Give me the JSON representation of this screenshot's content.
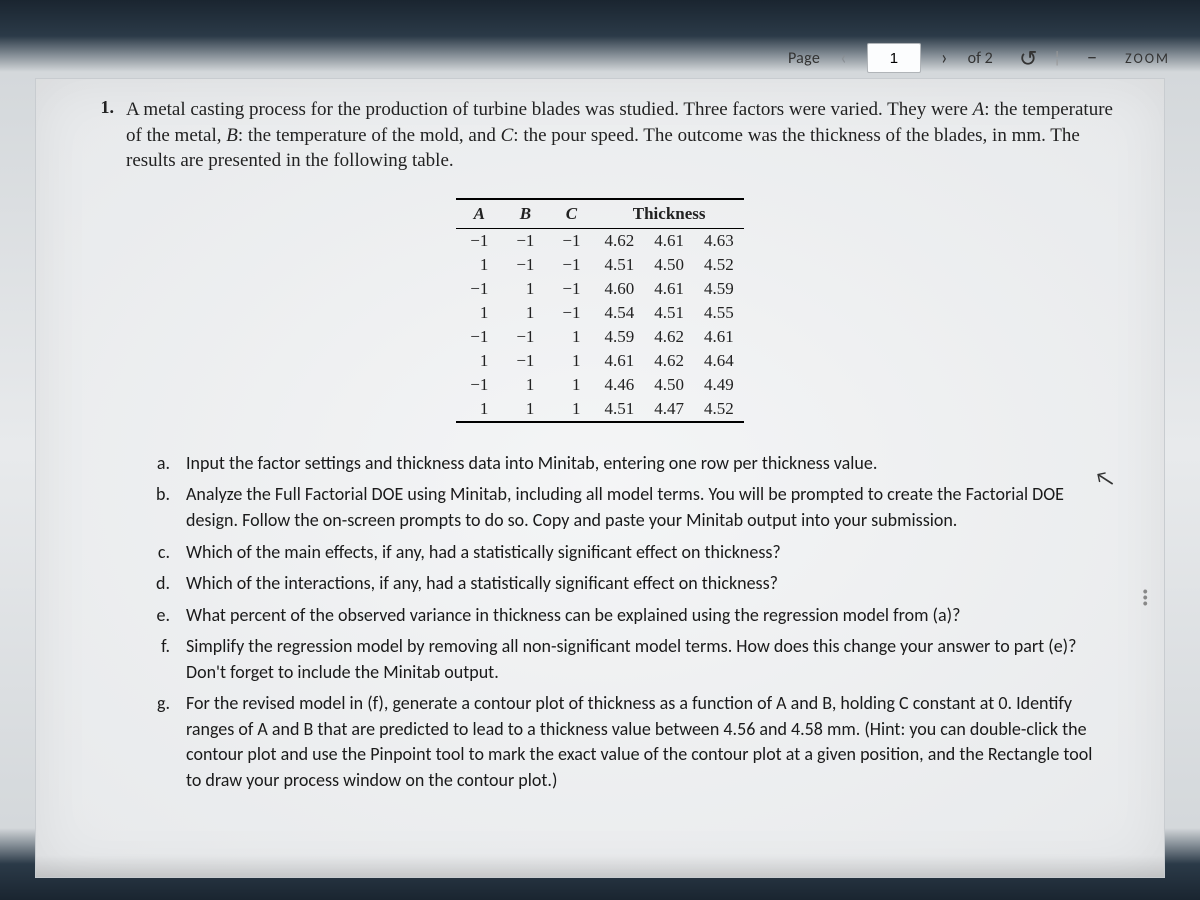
{
  "toolbar": {
    "page_label": "Page",
    "current_page": "1",
    "total_pages": "2",
    "of_label": "of",
    "zoom_label": "ZOOM"
  },
  "problem": {
    "number": "1.",
    "text_parts": [
      "A metal casting process for the production of turbine blades was studied. Three factors were varied. They were ",
      "A",
      ": the temperature of the metal, ",
      "B",
      ": the temperature of the mold, and ",
      "C",
      ": the pour speed. The outcome was the thickness of the blades, in mm. The results are presented in the following table."
    ]
  },
  "table": {
    "columns_abc": [
      "A",
      "B",
      "C"
    ],
    "thickness_header": "Thickness",
    "rows": [
      {
        "abc": [
          "−1",
          "−1",
          "−1"
        ],
        "thick": [
          "4.62",
          "4.61",
          "4.63"
        ]
      },
      {
        "abc": [
          "1",
          "−1",
          "−1"
        ],
        "thick": [
          "4.51",
          "4.50",
          "4.52"
        ]
      },
      {
        "abc": [
          "−1",
          "1",
          "−1"
        ],
        "thick": [
          "4.60",
          "4.61",
          "4.59"
        ]
      },
      {
        "abc": [
          "1",
          "1",
          "−1"
        ],
        "thick": [
          "4.54",
          "4.51",
          "4.55"
        ]
      },
      {
        "abc": [
          "−1",
          "−1",
          "1"
        ],
        "thick": [
          "4.59",
          "4.62",
          "4.61"
        ]
      },
      {
        "abc": [
          "1",
          "−1",
          "1"
        ],
        "thick": [
          "4.61",
          "4.62",
          "4.64"
        ]
      },
      {
        "abc": [
          "−1",
          "1",
          "1"
        ],
        "thick": [
          "4.46",
          "4.50",
          "4.49"
        ]
      },
      {
        "abc": [
          "1",
          "1",
          "1"
        ],
        "thick": [
          "4.51",
          "4.47",
          "4.52"
        ]
      }
    ],
    "border_color": "#000000",
    "font_family": "Times New Roman",
    "font_size_pt": 12
  },
  "subs": [
    {
      "label": "a.",
      "text": "Input the factor settings and thickness data into Minitab, entering one row per thickness value."
    },
    {
      "label": "b.",
      "text": "Analyze the Full Factorial DOE using Minitab, including all model terms.  You will be prompted to create the Factorial DOE design.  Follow the on-screen prompts to do so.  Copy and paste your Minitab output into your submission."
    },
    {
      "label": "c.",
      "text": "Which of the main effects, if any, had a statistically significant effect on thickness?"
    },
    {
      "label": "d.",
      "text": "Which of the interactions, if any, had a statistically significant effect on thickness?"
    },
    {
      "label": "e.",
      "text": "What percent of the observed variance in thickness can be explained using the regression model from (a)?"
    },
    {
      "label": "f.",
      "text": "Simplify the regression model by removing all non-significant model terms.  How does this change your answer to part (e)?  Don't forget to include the Minitab output."
    },
    {
      "label": "g.",
      "text": "For the revised model in (f), generate a contour plot of thickness as a function of A and B, holding C constant at 0.  Identify ranges of A and B that are predicted to lead to a thickness value between 4.56 and 4.58 mm.  (Hint: you can double-click the contour plot and use the Pinpoint tool to mark the exact value of the contour plot at a given position, and the Rectangle tool to draw your process window on the contour plot.)"
    }
  ],
  "colors": {
    "page_background": "#eceeef",
    "frame_dark": "#1a2530",
    "text": "#1a1a1a"
  }
}
